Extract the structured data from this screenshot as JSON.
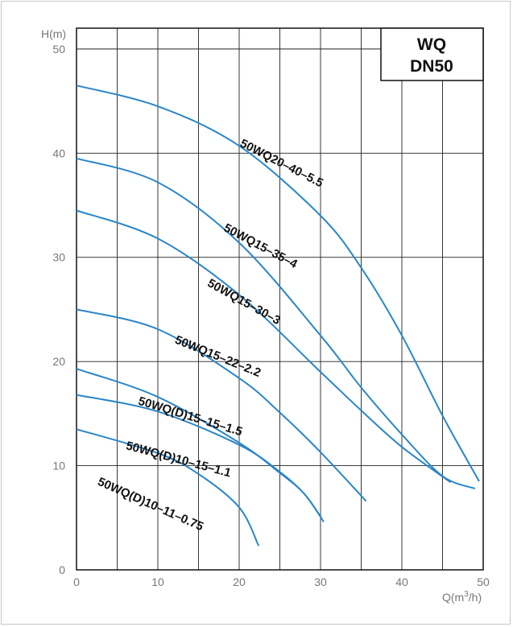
{
  "chart_data": {
    "type": "line",
    "title_lines": [
      "WQ",
      "DN50"
    ],
    "xlabel": "Q(m",
    "xlabel_sup": "3",
    "xlabel_tail": "/h)",
    "ylabel": "H(m)",
    "xlim": [
      0,
      50
    ],
    "ylim": [
      0,
      52
    ],
    "x_ticks": [
      0,
      10,
      20,
      30,
      40,
      50
    ],
    "y_ticks": [
      0,
      10,
      20,
      30,
      40,
      50
    ],
    "grid": true,
    "line_color": "#2a86c9",
    "series": [
      {
        "name": "50WQ20–40–5.5",
        "label_at": [
          20,
          40.7
        ],
        "label_angle": 27,
        "points": [
          [
            0,
            46.5
          ],
          [
            10,
            44.5
          ],
          [
            20,
            40.7
          ],
          [
            30,
            34
          ],
          [
            35,
            29
          ],
          [
            40,
            22.5
          ],
          [
            45,
            14.8
          ],
          [
            49.5,
            8.5
          ]
        ]
      },
      {
        "name": "50WQ15–35–4",
        "label_at": [
          18,
          32.6
        ],
        "label_angle": 28,
        "points": [
          [
            0,
            39.5
          ],
          [
            10,
            37.2
          ],
          [
            20,
            31.4
          ],
          [
            30,
            22.5
          ],
          [
            35,
            17.5
          ],
          [
            40,
            13
          ],
          [
            45,
            9
          ],
          [
            49,
            7.8
          ]
        ]
      },
      {
        "name": "50WQ15–30–3",
        "label_at": [
          16,
          27.3
        ],
        "label_angle": 29,
        "points": [
          [
            0,
            34.5
          ],
          [
            10,
            31.8
          ],
          [
            20,
            26.4
          ],
          [
            30,
            19
          ],
          [
            35,
            15.3
          ],
          [
            40,
            11.8
          ],
          [
            46,
            8.4
          ]
        ]
      },
      {
        "name": "50WQ15–22–2.2",
        "label_at": [
          12,
          21.8
        ],
        "label_angle": 22,
        "points": [
          [
            0,
            25
          ],
          [
            10,
            23.1
          ],
          [
            20,
            18.4
          ],
          [
            25,
            15.1
          ],
          [
            30,
            11.3
          ],
          [
            35.6,
            6.6
          ]
        ]
      },
      {
        "name": "50WQ(D)15–15–1.5",
        "label_at": [
          7.5,
          15.9
        ],
        "label_angle": 17,
        "points": [
          [
            0,
            19.3
          ],
          [
            10,
            16.6
          ],
          [
            20,
            12.2
          ],
          [
            25,
            9.3
          ],
          [
            28,
            7.3
          ],
          [
            30.4,
            4.6
          ]
        ]
      },
      {
        "name": "50WQ(D)10–15–1.1",
        "label_at": [
          6,
          11.6
        ],
        "label_angle": 15,
        "points": [
          [
            0,
            16.8
          ],
          [
            10,
            15.2
          ],
          [
            20,
            12
          ],
          [
            25,
            9.4
          ],
          [
            28,
            7.3
          ],
          [
            30.1,
            5
          ]
        ]
      },
      {
        "name": "50WQ(D)10–11–0.75",
        "label_at": [
          2.5,
          8.2
        ],
        "label_angle": 24,
        "points": [
          [
            0,
            13.5
          ],
          [
            10,
            11.2
          ],
          [
            15,
            9.2
          ],
          [
            20,
            6
          ],
          [
            22.4,
            2.3
          ]
        ]
      }
    ]
  }
}
